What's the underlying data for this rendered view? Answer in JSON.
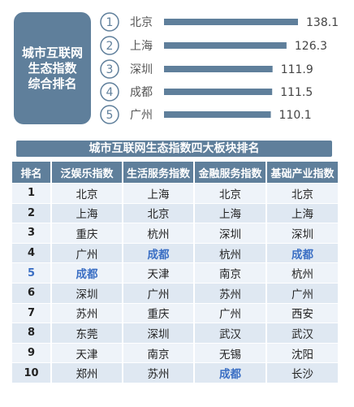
{
  "top_card": {
    "title": "城市互联网\n生态指数\n综合排名"
  },
  "banner": {
    "title": "城市互联网生态指数四大板块排名"
  },
  "chart_data": {
    "type": "bar",
    "orientation": "horizontal",
    "categories": [
      "北京",
      "上海",
      "深圳",
      "成都",
      "广州"
    ],
    "ranks": [
      "1",
      "2",
      "3",
      "4",
      "5"
    ],
    "values": [
      138.1,
      126.3,
      111.9,
      111.5,
      110.1
    ],
    "value_labels": [
      "138.1",
      "126.3",
      "111.9",
      "111.5",
      "110.1"
    ],
    "color": "#5f7f9b"
  },
  "table": {
    "headers": [
      "排名",
      "泛娱乐指数",
      "生活服务指数",
      "金融服务指数",
      "基础产业指数"
    ],
    "rows": [
      [
        "1",
        "北京",
        "上海",
        "北京",
        "北京"
      ],
      [
        "2",
        "上海",
        "北京",
        "上海",
        "上海"
      ],
      [
        "3",
        "重庆",
        "杭州",
        "深圳",
        "深圳"
      ],
      [
        "4",
        "广州",
        "成都",
        "杭州",
        "成都"
      ],
      [
        "5",
        "成都",
        "天津",
        "南京",
        "杭州"
      ],
      [
        "6",
        "深圳",
        "广州",
        "苏州",
        "广州"
      ],
      [
        "7",
        "苏州",
        "重庆",
        "广州",
        "西安"
      ],
      [
        "8",
        "东莞",
        "深圳",
        "武汉",
        "武汉"
      ],
      [
        "9",
        "天津",
        "南京",
        "无锡",
        "沈阳"
      ],
      [
        "10",
        "郑州",
        "苏州",
        "成都",
        "长沙"
      ]
    ],
    "highlight_city": "成都",
    "highlight_color": "#3b6fc4",
    "header_color": "#5f7f9b"
  }
}
